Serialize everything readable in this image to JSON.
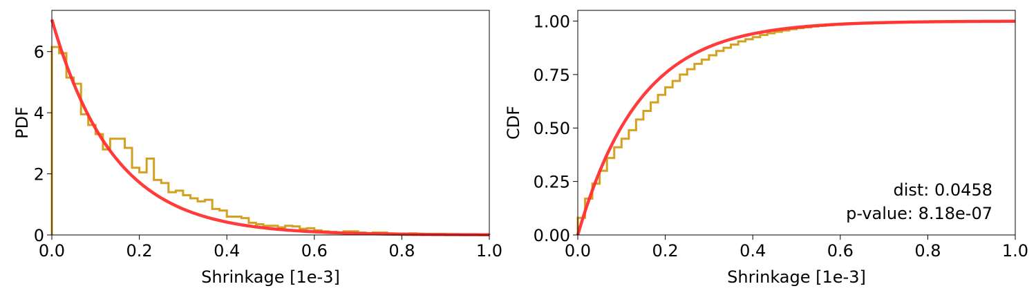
{
  "chart_data": [
    {
      "type": "line",
      "xlabel": "Shrinkage [1e-3]",
      "ylabel": "PDF",
      "xlim": [
        0.0,
        1.0
      ],
      "ylim": [
        0.0,
        7.35
      ],
      "xticks": [
        "0.0",
        "0.2",
        "0.4",
        "0.6",
        "0.8",
        "1.0"
      ],
      "xtick_values": [
        0.0,
        0.2,
        0.4,
        0.6,
        0.8,
        1.0
      ],
      "yticks": [
        "0",
        "2",
        "4",
        "6"
      ],
      "ytick_values": [
        0,
        2,
        4,
        6
      ],
      "grid": false,
      "colors": {
        "histogram": "#d4a020",
        "fit": "#ff3030"
      },
      "histogram": {
        "bin_edges": [
          0.0,
          0.0167,
          0.0333,
          0.05,
          0.0667,
          0.0833,
          0.1,
          0.1167,
          0.1333,
          0.15,
          0.1667,
          0.1833,
          0.2,
          0.2167,
          0.2333,
          0.25,
          0.2667,
          0.2833,
          0.3,
          0.3167,
          0.3333,
          0.35,
          0.3667,
          0.3833,
          0.4,
          0.4167,
          0.4333,
          0.45,
          0.4667,
          0.4833,
          0.5,
          0.5167,
          0.5333,
          0.55,
          0.5667,
          0.5833,
          0.6,
          0.6167,
          0.6333,
          0.65,
          0.6667,
          0.6833,
          0.7,
          0.7167,
          0.7333,
          0.75,
          0.7667,
          0.7833,
          0.8,
          0.8167,
          0.8333,
          0.85,
          0.8667,
          0.8833,
          0.9,
          0.9167,
          0.9333,
          0.95,
          0.9667,
          0.9833,
          1.0
        ],
        "density": [
          6.15,
          5.95,
          5.15,
          4.95,
          3.95,
          3.6,
          3.3,
          2.8,
          3.15,
          3.15,
          2.85,
          2.2,
          2.05,
          2.5,
          1.8,
          1.7,
          1.4,
          1.45,
          1.3,
          1.2,
          1.1,
          1.15,
          0.85,
          0.8,
          0.6,
          0.6,
          0.55,
          0.4,
          0.35,
          0.3,
          0.3,
          0.25,
          0.3,
          0.28,
          0.2,
          0.22,
          0.15,
          0.12,
          0.1,
          0.08,
          0.12,
          0.12,
          0.08,
          0.06,
          0.08,
          0.08,
          0.05,
          0.04,
          0.04,
          0.05,
          0.04,
          0.03,
          0.03,
          0.03,
          0.02,
          0.02,
          0.02,
          0.01,
          0.01,
          0.01
        ]
      },
      "fit": {
        "form": "exponential",
        "rate": 7.05
      }
    },
    {
      "type": "line",
      "xlabel": "Shrinkage [1e-3]",
      "ylabel": "CDF",
      "xlim": [
        0.0,
        1.0
      ],
      "ylim": [
        0.0,
        1.05
      ],
      "xticks": [
        "0.0",
        "0.2",
        "0.4",
        "0.6",
        "0.8",
        "1.0"
      ],
      "xtick_values": [
        0.0,
        0.2,
        0.4,
        0.6,
        0.8,
        1.0
      ],
      "yticks": [
        "0.00",
        "0.25",
        "0.50",
        "0.75",
        "1.00"
      ],
      "ytick_values": [
        0.0,
        0.25,
        0.5,
        0.75,
        1.0
      ],
      "grid": false,
      "colors": {
        "histogram": "#d4a020",
        "fit": "#ff3030"
      },
      "histogram": {
        "bin_edges": [
          0.0,
          0.0167,
          0.0333,
          0.05,
          0.0667,
          0.0833,
          0.1,
          0.1167,
          0.1333,
          0.15,
          0.1667,
          0.1833,
          0.2,
          0.2167,
          0.2333,
          0.25,
          0.2667,
          0.2833,
          0.3,
          0.3167,
          0.3333,
          0.35,
          0.3667,
          0.3833,
          0.4,
          0.4167,
          0.4333,
          0.45,
          0.4667,
          0.4833,
          0.5,
          0.5167,
          0.5333,
          0.55,
          0.5667,
          0.5833,
          0.6,
          0.6167,
          0.6333,
          0.65,
          0.6667,
          0.6833,
          0.7,
          0.7167,
          0.7333,
          0.75,
          0.7667,
          0.7833,
          0.8,
          0.8167,
          0.8333,
          0.85,
          0.8667,
          0.8833,
          0.9,
          0.9167,
          0.9333,
          0.95,
          0.9667,
          0.9833,
          1.0
        ],
        "cumulative": [
          0.08,
          0.17,
          0.24,
          0.3,
          0.36,
          0.41,
          0.45,
          0.49,
          0.54,
          0.58,
          0.62,
          0.655,
          0.69,
          0.72,
          0.75,
          0.775,
          0.8,
          0.82,
          0.84,
          0.86,
          0.875,
          0.89,
          0.905,
          0.915,
          0.925,
          0.935,
          0.943,
          0.95,
          0.956,
          0.962,
          0.967,
          0.971,
          0.975,
          0.978,
          0.981,
          0.984,
          0.986,
          0.988,
          0.99,
          0.991,
          0.992,
          0.993,
          0.994,
          0.995,
          0.996,
          0.996,
          0.997,
          0.997,
          0.998,
          0.998,
          0.998,
          0.999,
          0.999,
          0.999,
          0.999,
          0.999,
          1.0,
          1.0,
          1.0,
          1.0
        ]
      },
      "fit": {
        "form": "exponential-cdf",
        "rate": 7.05
      },
      "annotations": [
        "dist: 0.0458",
        "p-value: 8.18e-07"
      ]
    }
  ]
}
